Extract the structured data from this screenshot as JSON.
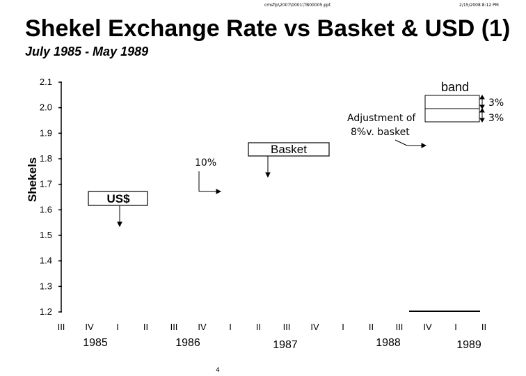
{
  "header": {
    "path": "cmsfip\\2007\\0001\\TB00005.ppt",
    "date": "2/15/2008 8:12 PM"
  },
  "title": "Shekel Exchange Rate vs Basket & USD (1)",
  "subtitle": "July 1985 - May 1989",
  "page_number": "4",
  "chart_data": {
    "type": "line",
    "title": "Shekel Exchange Rate vs Basket & USD (1)",
    "subtitle": "July 1985 - May 1989",
    "ylabel": "Shekels",
    "xlabel": "",
    "ylim": [
      1.2,
      2.1
    ],
    "yticks": [
      "2.1",
      "2.0",
      "1.9",
      "1.8",
      "1.7",
      "1.6",
      "1.5",
      "1.4",
      "1.3",
      "1.2"
    ],
    "quarters": [
      "III",
      "IV",
      "I",
      "II",
      "III",
      "IV",
      "I",
      "II",
      "III",
      "IV",
      "I",
      "II",
      "III",
      "IV",
      "I",
      "II"
    ],
    "years": [
      "1985",
      "1986",
      "1987",
      "1988",
      "1989"
    ],
    "series": [],
    "annotations": {
      "band": "band",
      "pct_upper": "3%",
      "pct_lower": "3%",
      "adjustment": [
        "Adjustment of",
        "8%v. basket"
      ],
      "basket": "Basket",
      "ten_pct": "10%",
      "usd": "US$"
    }
  }
}
